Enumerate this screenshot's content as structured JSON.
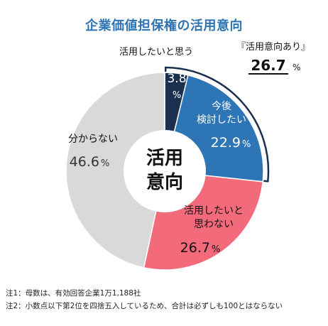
{
  "title": "企業価値担保権の活用意向",
  "chart_data": {
    "type": "pie",
    "variant": "donut",
    "center_label": [
      "活用",
      "意向"
    ],
    "slices": [
      {
        "label_lines": [
          "活用したいと思う"
        ],
        "value": 3.8,
        "value_text": [
          "3.8",
          "%"
        ],
        "color": "#1b2f4e",
        "label_color": "#111111",
        "value_color": "#ffffff"
      },
      {
        "label_lines": [
          "今後",
          "検討したい"
        ],
        "value": 22.9,
        "value_text": [
          "22.9",
          "%"
        ],
        "color": "#2e75b6",
        "label_color": "#ffffff",
        "value_color": "#ffffff"
      },
      {
        "label_lines": [
          "活用したいと",
          "思わない"
        ],
        "value": 26.7,
        "value_text": [
          "26.7",
          "%"
        ],
        "color": "#f36b7a",
        "label_color": "#111111",
        "value_color": "#111111"
      },
      {
        "label_lines": [
          "分からない"
        ],
        "value": 46.6,
        "value_text": [
          "46.6",
          "%"
        ],
        "color": "#d9d9d9",
        "label_color": "#111111",
        "value_color": "#333333"
      }
    ],
    "callout": {
      "label": "『活用意向あり』",
      "value": "26.7",
      "unit": "%"
    }
  },
  "notes": [
    "注1：母数は、有効回答企業1万1,188社",
    "注2：小数点以下第2位を四捨五入しているため、合計は必ずしも100とはならない"
  ]
}
